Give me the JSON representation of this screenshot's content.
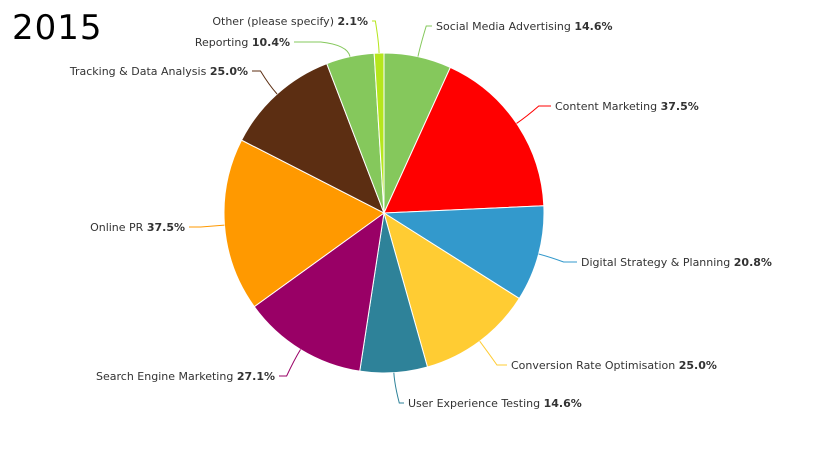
{
  "title": "2015",
  "chart_data": {
    "type": "pie",
    "title": "2015",
    "slices": [
      {
        "name": "Social Media Advertising",
        "value": 14.6,
        "label": "14.6%",
        "color": "#85c85c"
      },
      {
        "name": "Content Marketing",
        "value": 37.5,
        "label": "37.5%",
        "color": "#ff0000"
      },
      {
        "name": "Digital Strategy & Planning",
        "value": 20.8,
        "label": "20.8%",
        "color": "#3399cc"
      },
      {
        "name": "Conversion Rate Optimisation",
        "value": 25.0,
        "label": "25.0%",
        "color": "#ffcc33"
      },
      {
        "name": "User Experience Testing",
        "value": 14.6,
        "label": "14.6%",
        "color": "#2e8299"
      },
      {
        "name": "Search Engine Marketing",
        "value": 27.1,
        "label": "27.1%",
        "color": "#990066"
      },
      {
        "name": "Online PR",
        "value": 37.5,
        "label": "37.5%",
        "color": "#ff9900"
      },
      {
        "name": "Tracking & Data Analysis",
        "value": 25.0,
        "label": "25.0%",
        "color": "#5c2e12"
      },
      {
        "name": "Reporting",
        "value": 10.4,
        "label": "10.4%",
        "color": "#85c85c"
      },
      {
        "name": "Other (please specify)",
        "value": 2.1,
        "label": "2.1%",
        "color": "#b5e61d"
      }
    ]
  }
}
